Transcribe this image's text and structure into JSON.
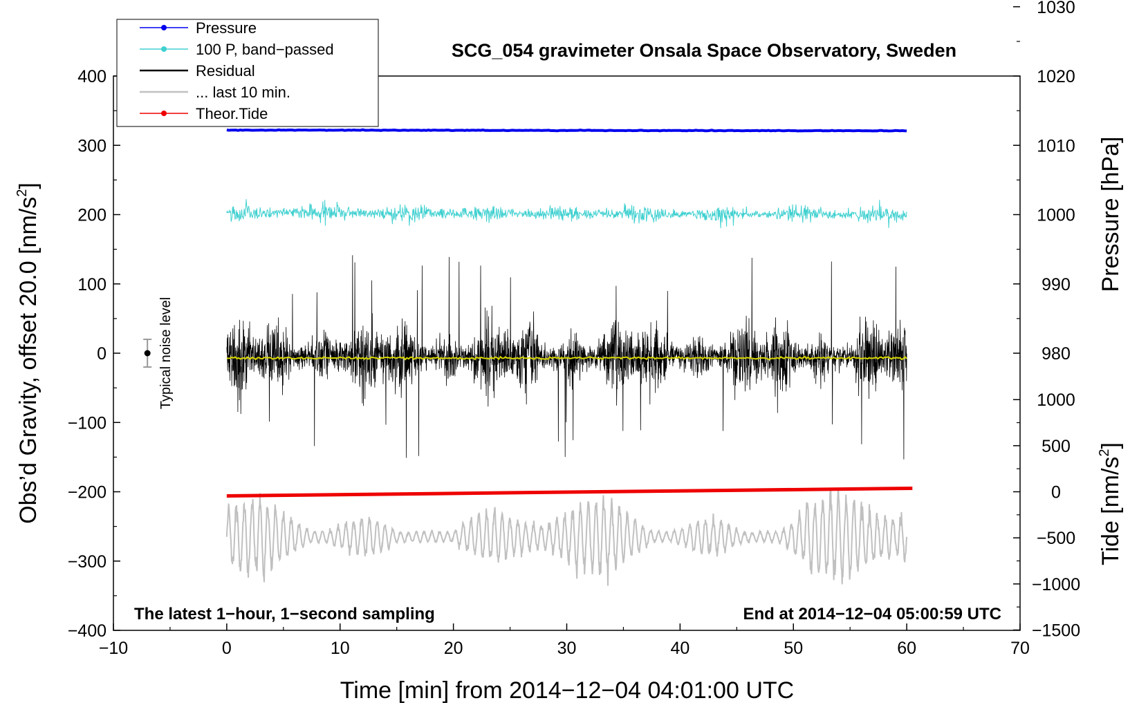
{
  "chart_data": {
    "type": "line",
    "title": "SCG_054 gravimeter Onsala Space Observatory, Sweden",
    "xlabel": "Time [min] from 2014−12−04 04:01:00 UTC",
    "ylabel_left": "Obs’d Gravity, offset 20.0 [nm/s²]",
    "ylabel_left_main": "Obs’d Gravity, offset 20.0 [nm/s",
    "ylabel_right_top": "Pressure [hPa]",
    "ylabel_right_bottom_main": "Tide [nm/s",
    "ylabel_sup": "2",
    "ylabel_right_bottom_end": "]",
    "xlim": [
      -10,
      70
    ],
    "ylim": [
      -400,
      400
    ],
    "x_ticks": [
      -10,
      0,
      10,
      20,
      30,
      40,
      50,
      60,
      70
    ],
    "x_tick_labels": [
      "−10",
      "0",
      "10",
      "20",
      "30",
      "40",
      "50",
      "60",
      "70"
    ],
    "y_ticks": [
      -400,
      -300,
      -200,
      -100,
      0,
      100,
      200,
      300,
      400
    ],
    "y_tick_labels": [
      "−400",
      "−300",
      "−200",
      "−100",
      "0",
      "100",
      "200",
      "300",
      "400"
    ],
    "pressure_axis": {
      "ticks": [
        980,
        990,
        1000,
        1010,
        1020,
        1030
      ],
      "tick_labels": [
        "980",
        "990",
        "1000",
        "1010",
        "1020",
        "1030"
      ],
      "anchor_value": 1000,
      "anchor_gravity": 200,
      "gravity_per_unit": 10
    },
    "tide_axis": {
      "ticks": [
        -1500,
        -1000,
        -500,
        0,
        500,
        1000
      ],
      "tick_labels": [
        "−1500",
        "−1000",
        "−500",
        "0",
        "500",
        "1000"
      ],
      "anchor_value": 0,
      "anchor_gravity": -200,
      "gravity_per_unit": 0.133
    },
    "legend": [
      {
        "label": "Pressure",
        "color": "#0000ee",
        "marker": true
      },
      {
        "label": "100 P, band−passed",
        "color": "#40d0d0",
        "marker": true
      },
      {
        "label": "Residual",
        "color": "#000000",
        "marker": false
      },
      {
        "label": "... last 10 min.",
        "color": "#c0c0c0",
        "marker": false
      },
      {
        "label": "Theor.Tide",
        "color": "#ee0000",
        "marker": true
      }
    ],
    "series": [
      {
        "name": "Pressure",
        "color": "#0000ee",
        "x_range": [
          0,
          60
        ],
        "y_start": 322,
        "y_end": 321
      },
      {
        "name": "100 P, band−passed",
        "color": "#40d0d0",
        "x_range": [
          0,
          60
        ],
        "center": 203,
        "amplitude": 12
      },
      {
        "name": "Residual",
        "color": "#000000",
        "x_range": [
          0,
          60
        ],
        "center": -5,
        "amplitude": 45
      },
      {
        "name": "Residual mean",
        "color": "#d8d800",
        "x_range": [
          0,
          60
        ],
        "center": -7
      },
      {
        "name": "... last 10 min.",
        "color": "#c0c0c0",
        "x_range": [
          0,
          60
        ],
        "center": -265,
        "amplitude": 45
      },
      {
        "name": "Theor.Tide",
        "color": "#ee0000",
        "x_range": [
          0,
          60.5
        ],
        "y_start": -206,
        "y_end": -195
      }
    ],
    "noise_level": {
      "x": -7,
      "y": 0,
      "low": -20,
      "high": 20,
      "label": "Typical noise level"
    },
    "annotations": {
      "left": "The latest 1−hour, 1−second sampling",
      "right": "End at 2014−12−04 05:00:59 UTC"
    },
    "colors": {
      "pressure": "#0000ee",
      "bandpass": "#40d0d0",
      "residual": "#000000",
      "residual_mean": "#d8d800",
      "last10": "#c0c0c0",
      "tide": "#ee0000"
    }
  }
}
